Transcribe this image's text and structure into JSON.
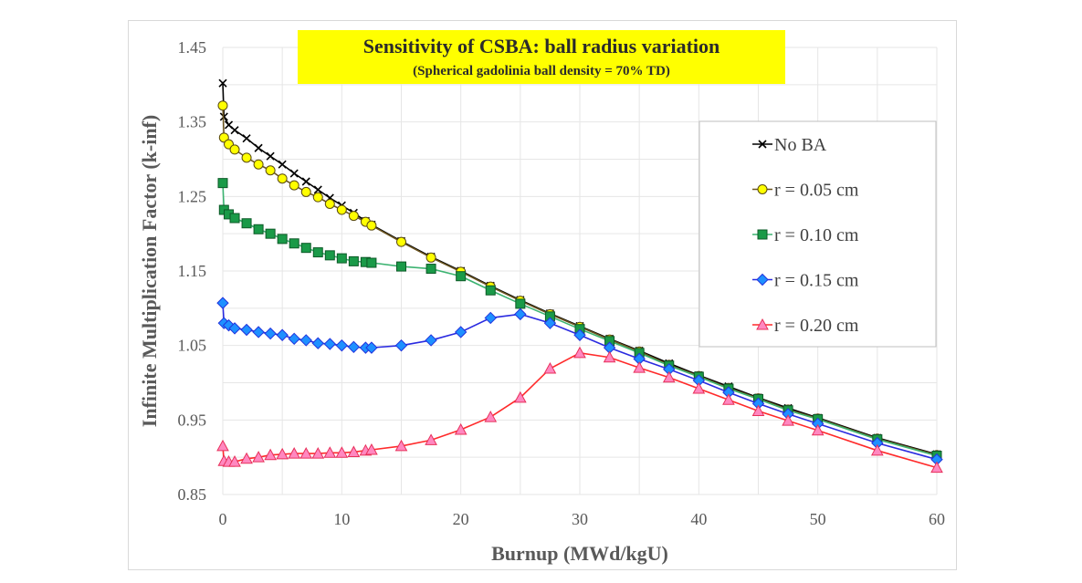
{
  "chart_data": {
    "type": "line",
    "title": "Sensitivity of CSBA: ball radius variation",
    "subtitle": "(Spherical gadolinia ball density = 70% TD)",
    "xlabel": "Burnup (MWd/kgU)",
    "ylabel": "Infinite Multiplication Factor (k-inf)",
    "xlim": [
      0,
      60
    ],
    "ylim": [
      0.85,
      1.45
    ],
    "xticks": [
      0,
      10,
      20,
      30,
      40,
      50,
      60
    ],
    "yticks": [
      0.85,
      0.95,
      1.05,
      1.15,
      1.25,
      1.35,
      1.45
    ],
    "grid": true,
    "legend_placement": "right",
    "colors": {
      "title_background": "#ffff00"
    },
    "x": [
      0,
      0.1,
      0.5,
      1,
      2,
      3,
      4,
      5,
      6,
      7,
      8,
      9,
      10,
      11,
      12,
      12.5,
      15,
      17.5,
      20,
      22.5,
      25,
      27.5,
      30,
      32.5,
      35,
      37.5,
      40,
      42.5,
      45,
      47.5,
      50,
      55,
      60
    ],
    "series": [
      {
        "name": "No BA",
        "marker": "x",
        "line_color": "#000000",
        "fill": "#000000",
        "stroke": "#000000",
        "values": [
          1.402,
          1.357,
          1.346,
          1.339,
          1.328,
          1.315,
          1.304,
          1.293,
          1.281,
          1.27,
          1.259,
          1.248,
          1.238,
          1.228,
          1.217,
          1.212,
          1.19,
          1.169,
          1.15,
          1.13,
          1.111,
          1.093,
          1.076,
          1.059,
          1.043,
          1.026,
          1.01,
          0.995,
          0.98,
          0.966,
          0.953,
          0.926,
          0.904
        ]
      },
      {
        "name": "r = 0.05 cm",
        "marker": "circle",
        "line_color": "#6b5520",
        "fill": "#ffff00",
        "stroke": "#5a4a10",
        "values": [
          1.372,
          1.329,
          1.32,
          1.313,
          1.302,
          1.293,
          1.285,
          1.274,
          1.265,
          1.256,
          1.249,
          1.24,
          1.232,
          1.224,
          1.216,
          1.211,
          1.189,
          1.168,
          1.149,
          1.129,
          1.11,
          1.092,
          1.075,
          1.058,
          1.042,
          1.024,
          1.009,
          0.993,
          0.979,
          0.964,
          0.952,
          0.925,
          0.903
        ]
      },
      {
        "name": "r = 0.10 cm",
        "marker": "square",
        "line_color": "#3cb371",
        "fill": "#1a9a48",
        "stroke": "#0d5a28",
        "values": [
          1.268,
          1.232,
          1.226,
          1.221,
          1.214,
          1.206,
          1.2,
          1.193,
          1.187,
          1.181,
          1.175,
          1.171,
          1.167,
          1.163,
          1.162,
          1.161,
          1.156,
          1.153,
          1.143,
          1.124,
          1.106,
          1.089,
          1.072,
          1.056,
          1.04,
          1.023,
          1.008,
          0.992,
          0.978,
          0.963,
          0.951,
          0.924,
          0.902
        ]
      },
      {
        "name": "r = 0.15 cm",
        "marker": "diamond",
        "line_color": "#2a2ae0",
        "fill": "#1e90ff",
        "stroke": "#2233dd",
        "values": [
          1.107,
          1.08,
          1.077,
          1.073,
          1.071,
          1.068,
          1.066,
          1.064,
          1.059,
          1.057,
          1.053,
          1.052,
          1.05,
          1.048,
          1.047,
          1.047,
          1.05,
          1.057,
          1.068,
          1.087,
          1.092,
          1.08,
          1.064,
          1.047,
          1.032,
          1.018,
          1.003,
          0.987,
          0.972,
          0.958,
          0.945,
          0.919,
          0.897
        ]
      },
      {
        "name": "r = 0.20 cm",
        "marker": "triangle",
        "line_color": "#ff2a2a",
        "fill": "#ff88c0",
        "stroke": "#e8305a",
        "values": [
          0.915,
          0.895,
          0.894,
          0.894,
          0.898,
          0.9,
          0.903,
          0.904,
          0.905,
          0.905,
          0.905,
          0.906,
          0.906,
          0.907,
          0.909,
          0.91,
          0.915,
          0.923,
          0.937,
          0.954,
          0.98,
          1.019,
          1.04,
          1.034,
          1.02,
          1.007,
          0.992,
          0.977,
          0.962,
          0.949,
          0.936,
          0.909,
          0.886
        ]
      }
    ]
  }
}
